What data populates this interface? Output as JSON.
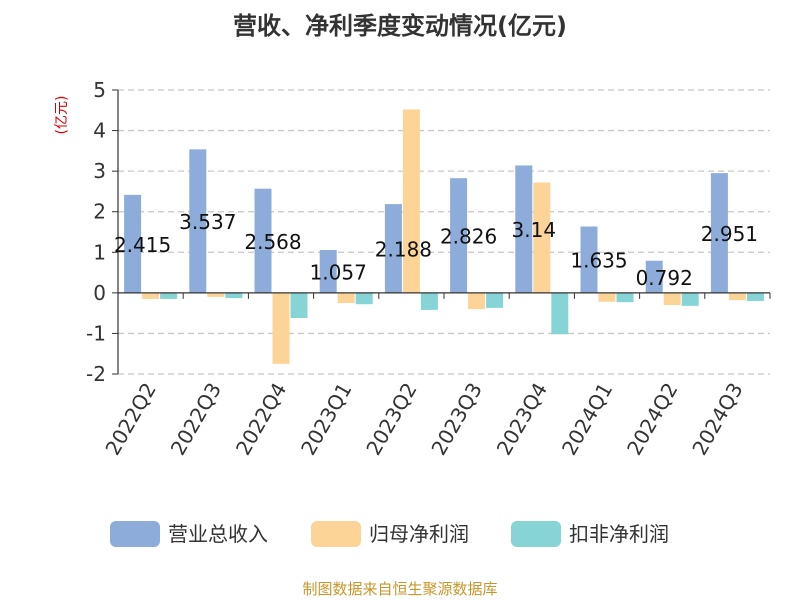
{
  "chart_data": {
    "type": "bar",
    "title": "营收、净利季度变动情况(亿元)",
    "ylabel": "(亿元)",
    "xlabel": "",
    "categories": [
      "2022Q2",
      "2022Q3",
      "2022Q4",
      "2023Q1",
      "2023Q2",
      "2023Q3",
      "2023Q4",
      "2024Q1",
      "2024Q2",
      "2024Q3"
    ],
    "ylim": [
      -2,
      5
    ],
    "yticks": [
      5,
      4,
      3,
      2,
      1,
      0,
      -1,
      -2
    ],
    "grid": true,
    "legend_position": "bottom",
    "series": [
      {
        "name": "营业总收入",
        "color": "#8eacd9",
        "values": [
          2.415,
          3.537,
          2.568,
          1.057,
          2.188,
          2.826,
          3.14,
          1.635,
          0.792,
          2.951
        ],
        "data_labels": [
          "2.415",
          "3.537",
          "2.568",
          "1.057",
          "2.188",
          "2.826",
          "3.14",
          "1.635",
          "0.792",
          "2.951"
        ]
      },
      {
        "name": "归母净利润",
        "color": "#fdd497",
        "values": [
          -0.15,
          -0.1,
          -1.75,
          -0.25,
          4.52,
          -0.4,
          2.72,
          -0.22,
          -0.3,
          -0.18
        ]
      },
      {
        "name": "扣非净利润",
        "color": "#86d4d6",
        "values": [
          -0.15,
          -0.13,
          -0.62,
          -0.28,
          -0.42,
          -0.37,
          -1.02,
          -0.23,
          -0.32,
          -0.2
        ]
      }
    ],
    "source": "制图数据来自恒生聚源数据库"
  }
}
